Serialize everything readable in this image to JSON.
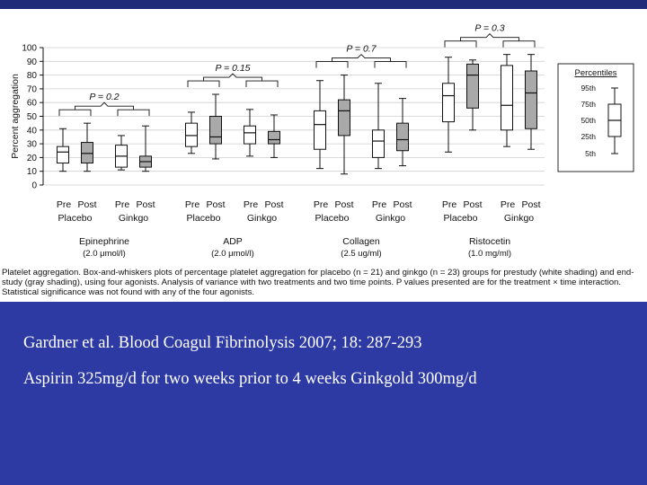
{
  "chart_data": {
    "type": "boxplot",
    "ylabel": "Percent aggregation",
    "ylim": [
      0,
      100
    ],
    "yticks": [
      0,
      10,
      20,
      30,
      40,
      50,
      60,
      70,
      80,
      90,
      100
    ],
    "grid": true,
    "groups": [
      {
        "agonist": "Epinephrine",
        "conc": "(2.0 μmol/l)",
        "p_label": "P = 0.2",
        "treatments": [
          "Placebo",
          "Ginkgo"
        ],
        "boxes": [
          {
            "treatment": "Placebo",
            "time": "Pre",
            "shading": "white",
            "whislo": 10,
            "q1": 16,
            "med": 24,
            "q3": 28,
            "whishi": 41
          },
          {
            "treatment": "Placebo",
            "time": "Post",
            "shading": "gray",
            "whislo": 10,
            "q1": 16,
            "med": 23,
            "q3": 31,
            "whishi": 45
          },
          {
            "treatment": "Ginkgo",
            "time": "Pre",
            "shading": "white",
            "whislo": 11,
            "q1": 13,
            "med": 21,
            "q3": 29,
            "whishi": 36
          },
          {
            "treatment": "Ginkgo",
            "time": "Post",
            "shading": "gray",
            "whislo": 10,
            "q1": 13,
            "med": 17,
            "q3": 21,
            "whishi": 43
          }
        ]
      },
      {
        "agonist": "ADP",
        "conc": "(2.0 μmol/l)",
        "p_label": "P = 0.15",
        "treatments": [
          "Placebo",
          "Ginkgo"
        ],
        "boxes": [
          {
            "treatment": "Placebo",
            "time": "Pre",
            "shading": "white",
            "whislo": 23,
            "q1": 28,
            "med": 36,
            "q3": 45,
            "whishi": 53
          },
          {
            "treatment": "Placebo",
            "time": "Post",
            "shading": "gray",
            "whislo": 19,
            "q1": 30,
            "med": 35,
            "q3": 50,
            "whishi": 66
          },
          {
            "treatment": "Ginkgo",
            "time": "Pre",
            "shading": "white",
            "whislo": 21,
            "q1": 30,
            "med": 38,
            "q3": 43,
            "whishi": 55
          },
          {
            "treatment": "Ginkgo",
            "time": "Post",
            "shading": "gray",
            "whislo": 20,
            "q1": 30,
            "med": 33,
            "q3": 39,
            "whishi": 51
          }
        ]
      },
      {
        "agonist": "Collagen",
        "conc": "(2.5 ug/ml)",
        "p_label": "P = 0.7",
        "treatments": [
          "Placebo",
          "Ginkgo"
        ],
        "boxes": [
          {
            "treatment": "Placebo",
            "time": "Pre",
            "shading": "white",
            "whislo": 12,
            "q1": 26,
            "med": 44,
            "q3": 54,
            "whishi": 76
          },
          {
            "treatment": "Placebo",
            "time": "Post",
            "shading": "gray",
            "whislo": 8,
            "q1": 36,
            "med": 54,
            "q3": 62,
            "whishi": 80
          },
          {
            "treatment": "Ginkgo",
            "time": "Pre",
            "shading": "white",
            "whislo": 12,
            "q1": 20,
            "med": 32,
            "q3": 40,
            "whishi": 74
          },
          {
            "treatment": "Ginkgo",
            "time": "Post",
            "shading": "gray",
            "whislo": 14,
            "q1": 25,
            "med": 33,
            "q3": 45,
            "whishi": 63
          }
        ]
      },
      {
        "agonist": "Ristocetin",
        "conc": "(1.0 mg/ml)",
        "p_label": "P = 0.3",
        "treatments": [
          "Placebo",
          "Ginkgo"
        ],
        "boxes": [
          {
            "treatment": "Placebo",
            "time": "Pre",
            "shading": "white",
            "whislo": 24,
            "q1": 46,
            "med": 65,
            "q3": 74,
            "whishi": 93
          },
          {
            "treatment": "Placebo",
            "time": "Post",
            "shading": "gray",
            "whislo": 40,
            "q1": 56,
            "med": 80,
            "q3": 88,
            "whishi": 91
          },
          {
            "treatment": "Ginkgo",
            "time": "Pre",
            "shading": "white",
            "whislo": 28,
            "q1": 40,
            "med": 58,
            "q3": 87,
            "whishi": 95
          },
          {
            "treatment": "Ginkgo",
            "time": "Post",
            "shading": "gray",
            "whislo": 26,
            "q1": 41,
            "med": 67,
            "q3": 83,
            "whishi": 95
          }
        ]
      }
    ],
    "time_labels": [
      "Pre",
      "Post"
    ],
    "legend": {
      "title": "Percentiles",
      "entries": [
        "95th",
        "75th",
        "50th",
        "25th",
        "5th"
      ],
      "placement": "right"
    },
    "colors": {
      "gray_box": "#a9a9a9",
      "white_box": "#ffffff",
      "grid": "#cfcfcf"
    }
  },
  "caption": "Platelet aggregation. Box-and-whiskers plots of percentage platelet aggregation for placebo (n = 21) and ginkgo (n = 23) groups for prestudy (white shading) and end-study (gray shading), using four agonists. Analysis of variance with two treatments and two time points. P values presented are for the treatment × time interaction. Statistical significance was not found with any of the four agonists.",
  "citation_line_1": "Gardner et al. Blood Coagul Fibrinolysis 2007; 18: 287-293",
  "citation_line_2": "Aspirin 325mg/d for two weeks prior to 4 weeks Ginkgold 300mg/d",
  "colors": {
    "background": "#2d3aa3",
    "top_band": "#1f2a78",
    "citation_text": "#ffffff"
  }
}
